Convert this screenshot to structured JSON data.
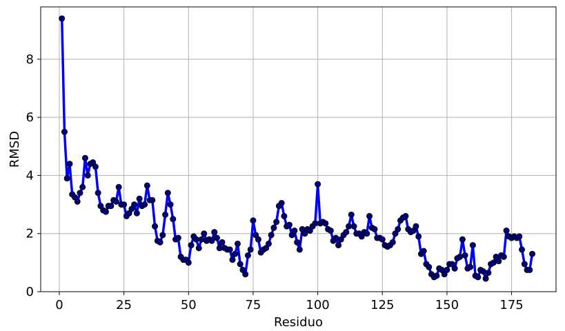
{
  "chart_data": {
    "type": "line",
    "title": "",
    "xlabel": "Residuo",
    "ylabel": "RMSD",
    "xlim": [
      -7.2,
      192.2
    ],
    "ylim": [
      0,
      9.8
    ],
    "xticks": [
      0,
      25,
      50,
      75,
      100,
      125,
      150,
      175
    ],
    "yticks": [
      0,
      2,
      4,
      6,
      8
    ],
    "grid": true,
    "series": [
      {
        "name": "",
        "color": "#0000ff",
        "marker_color": "#000080",
        "x": [
          1,
          2,
          3,
          4,
          5,
          6,
          7,
          8,
          9,
          10,
          11,
          12,
          13,
          14,
          15,
          16,
          17,
          18,
          19,
          20,
          21,
          22,
          23,
          24,
          25,
          26,
          27,
          28,
          29,
          30,
          31,
          32,
          33,
          34,
          35,
          36,
          37,
          38,
          39,
          40,
          41,
          42,
          43,
          44,
          45,
          46,
          47,
          48,
          49,
          50,
          51,
          52,
          53,
          54,
          55,
          56,
          57,
          58,
          59,
          60,
          61,
          62,
          63,
          64,
          65,
          66,
          67,
          68,
          69,
          70,
          71,
          72,
          73,
          74,
          75,
          76,
          77,
          78,
          79,
          80,
          81,
          82,
          83,
          84,
          85,
          86,
          87,
          88,
          89,
          90,
          91,
          92,
          93,
          94,
          95,
          96,
          97,
          98,
          99,
          100,
          101,
          102,
          103,
          104,
          105,
          106,
          107,
          108,
          109,
          110,
          111,
          112,
          113,
          114,
          115,
          116,
          117,
          118,
          119,
          120,
          121,
          122,
          123,
          124,
          125,
          126,
          127,
          128,
          129,
          130,
          131,
          132,
          133,
          134,
          135,
          136,
          137,
          138,
          139,
          140,
          141,
          142,
          143,
          144,
          145,
          146,
          147,
          148,
          149,
          150,
          151,
          152,
          153,
          154,
          155,
          156,
          157,
          158,
          159,
          160,
          161,
          162,
          163,
          164,
          165,
          166,
          167,
          168,
          169,
          170,
          171,
          172,
          173,
          174,
          175,
          176,
          177,
          178,
          179,
          180,
          181,
          182,
          183
        ],
        "y": [
          9.4,
          5.5,
          3.9,
          4.4,
          3.35,
          3.25,
          3.1,
          3.4,
          3.6,
          4.6,
          4.0,
          4.4,
          4.45,
          4.3,
          3.4,
          2.95,
          2.8,
          2.75,
          2.95,
          2.95,
          3.15,
          3.1,
          3.6,
          3.0,
          3.0,
          2.6,
          2.7,
          2.85,
          3.0,
          2.7,
          3.2,
          2.95,
          3.0,
          3.65,
          3.15,
          3.15,
          2.25,
          1.75,
          1.7,
          1.95,
          2.65,
          3.4,
          3.0,
          2.5,
          1.8,
          1.85,
          1.2,
          1.1,
          1.1,
          1.0,
          1.6,
          1.9,
          1.8,
          1.5,
          1.8,
          2.0,
          1.75,
          1.8,
          1.75,
          2.05,
          1.85,
          1.5,
          1.7,
          1.5,
          1.45,
          1.45,
          1.1,
          1.3,
          1.65,
          0.95,
          0.75,
          0.6,
          1.25,
          1.45,
          2.45,
          1.95,
          1.8,
          1.35,
          1.45,
          1.5,
          1.65,
          1.95,
          2.2,
          2.4,
          2.95,
          3.05,
          2.6,
          2.25,
          2.3,
          1.95,
          2.1,
          1.7,
          1.45,
          2.15,
          2.0,
          2.15,
          2.1,
          2.25,
          2.35,
          3.7,
          2.35,
          2.4,
          2.35,
          2.15,
          2.1,
          1.75,
          1.85,
          1.6,
          1.8,
          1.95,
          2.05,
          2.25,
          2.65,
          2.25,
          2.0,
          2.0,
          1.9,
          2.05,
          2.0,
          2.6,
          2.2,
          2.15,
          1.85,
          1.85,
          1.8,
          1.6,
          1.55,
          1.6,
          1.7,
          2.0,
          2.15,
          2.45,
          2.55,
          2.6,
          2.15,
          2.05,
          2.1,
          2.25,
          1.9,
          1.3,
          1.4,
          0.95,
          0.85,
          0.6,
          0.5,
          0.55,
          0.8,
          0.75,
          0.6,
          0.75,
          0.95,
          0.95,
          0.8,
          1.15,
          1.2,
          1.8,
          1.25,
          0.8,
          0.85,
          1.6,
          0.55,
          0.5,
          0.75,
          0.7,
          0.45,
          0.65,
          0.95,
          1.0,
          1.2,
          1.05,
          1.25,
          1.2,
          2.1,
          1.9,
          1.85,
          1.9,
          1.85,
          1.9,
          1.45,
          0.95,
          0.75,
          0.75,
          1.3
        ]
      }
    ]
  }
}
